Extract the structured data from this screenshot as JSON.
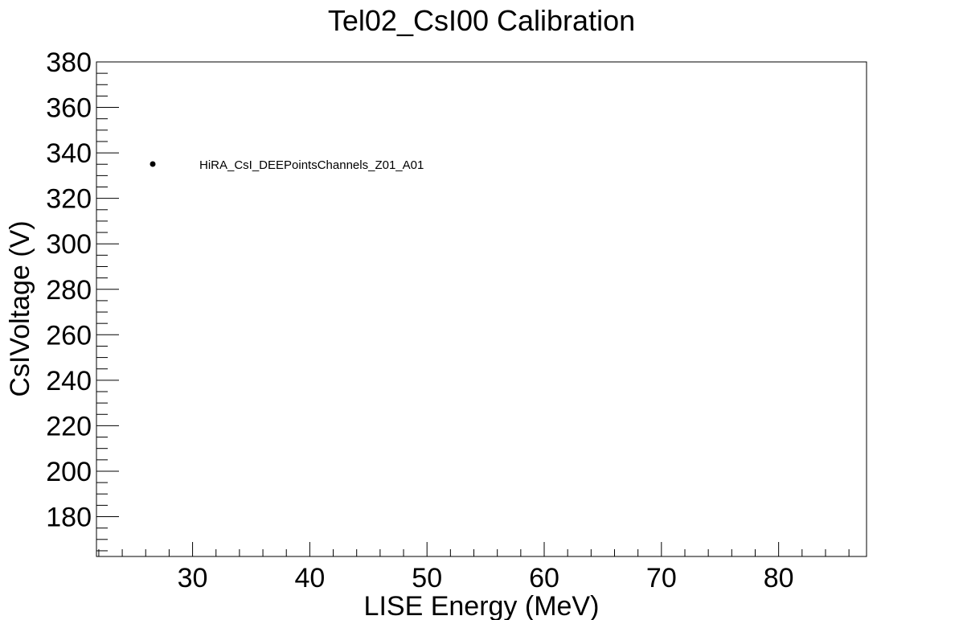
{
  "chart_data": {
    "type": "scatter",
    "title": "Tel02_CsI00 Calibration",
    "xlabel": "LISE Energy (MeV)",
    "ylabel": "CsIVoltage (V)",
    "xlim": [
      21.8,
      87.5
    ],
    "ylim": [
      162.5,
      380
    ],
    "x_ticks": [
      30,
      40,
      50,
      60,
      70,
      80
    ],
    "y_ticks": [
      180,
      200,
      220,
      240,
      260,
      280,
      300,
      320,
      340,
      360,
      380
    ],
    "grid": false,
    "legend": {
      "placement": "top-left",
      "entries": [
        "HiRA_CsI_DEEPointsChannels_Z01_A01"
      ]
    },
    "series": [
      {
        "name": "HiRA_CsI_DEEPointsChannels_Z01_A01",
        "marker": "circle",
        "color": "#000000",
        "x": [],
        "y": []
      }
    ]
  }
}
